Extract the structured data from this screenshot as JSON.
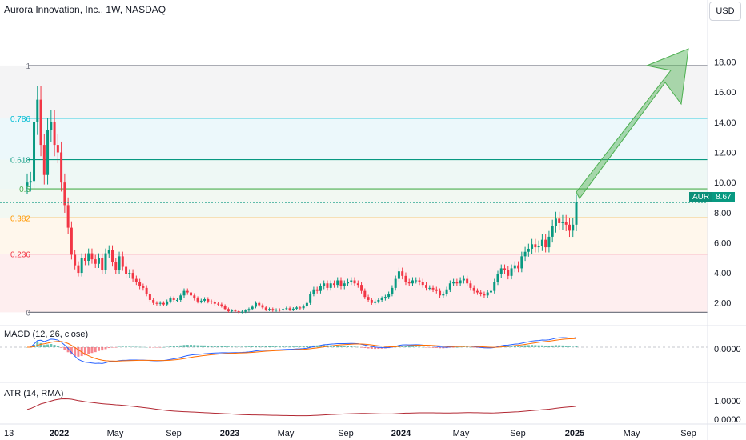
{
  "header": {
    "title": "Aurora Innovation, Inc., 1W, NASDAQ",
    "currency": "USD"
  },
  "colors": {
    "up": "#089981",
    "down": "#f23645",
    "fib_1": "#787b86",
    "fib_0786": "#00bcd4",
    "fib_0618": "#089981",
    "fib_05": "#4caf50",
    "fib_0382": "#ff9800",
    "fib_0236": "#f23645",
    "macd_line": "#2962ff",
    "signal_line": "#ff6d00",
    "atr_line": "#b22833",
    "arrow": "#4caf50"
  },
  "price_label": {
    "symbol": "AUR",
    "value": "8.67"
  },
  "macd_label": "MACD (12, 26, close)",
  "atr_label": "ATR (14, RMA)",
  "chart_data": [
    {
      "type": "candlestick",
      "pane": "price",
      "y_axis_ticks": [
        2,
        4,
        6,
        8,
        10,
        12,
        14,
        16,
        18
      ],
      "y_axis_tick_labels": [
        "2.00",
        "4.00",
        "6.00",
        "8.00",
        "10.00",
        "12.00",
        "14.00",
        "16.00",
        "18.00"
      ],
      "ylim": [
        0.55,
        19.2
      ],
      "x_axis_labels": [
        "13",
        "2022",
        "May",
        "Sep",
        "2023",
        "May",
        "Sep",
        "2024",
        "May",
        "Sep",
        "2025",
        "May",
        "Sep"
      ],
      "last_price": 8.67,
      "fibonacci": [
        {
          "level": "1",
          "price": 17.77
        },
        {
          "level": "0.786",
          "price": 14.27
        },
        {
          "level": "0.618",
          "price": 11.52
        },
        {
          "level": "0.5",
          "price": 9.58
        },
        {
          "level": "0.382",
          "price": 7.65
        },
        {
          "level": "0.236",
          "price": 5.25
        },
        {
          "level": "0",
          "price": 1.38
        }
      ],
      "closes": [
        10.0,
        10.1,
        14.0,
        15.5,
        12.5,
        10.5,
        13.5,
        14.0,
        12.5,
        12.0,
        10.0,
        8.5,
        7.0,
        5.2,
        4.5,
        4.0,
        5.0,
        4.8,
        5.3,
        4.9,
        4.6,
        5.0,
        4.2,
        5.3,
        5.5,
        4.7,
        4.2,
        5.1,
        4.4,
        3.9,
        4.0,
        3.6,
        3.4,
        3.1,
        3.0,
        2.6,
        2.2,
        2.0,
        1.95,
        2.0,
        1.9,
        2.1,
        2.3,
        2.2,
        2.2,
        2.5,
        2.8,
        2.7,
        2.5,
        2.3,
        2.1,
        2.15,
        2.25,
        2.1,
        2.05,
        1.95,
        1.9,
        1.8,
        1.6,
        1.45,
        1.5,
        1.45,
        1.4,
        1.42,
        1.5,
        1.6,
        1.75,
        2.0,
        1.85,
        1.7,
        1.55,
        1.6,
        1.5,
        1.55,
        1.52,
        1.6,
        1.65,
        1.55,
        1.62,
        1.7,
        1.65,
        1.8,
        2.0,
        2.6,
        2.9,
        2.8,
        3.1,
        3.3,
        3.0,
        3.3,
        3.2,
        3.5,
        3.1,
        3.3,
        3.4,
        3.5,
        3.3,
        3.2,
        2.8,
        2.4,
        2.2,
        2.0,
        2.1,
        2.2,
        2.3,
        2.4,
        2.6,
        3.0,
        3.6,
        4.1,
        3.8,
        3.4,
        3.3,
        3.5,
        3.5,
        3.4,
        3.2,
        3.0,
        3.0,
        2.9,
        2.8,
        2.5,
        2.6,
        2.9,
        3.3,
        3.4,
        3.3,
        3.5,
        3.6,
        3.3,
        3.0,
        2.8,
        2.7,
        2.6,
        2.5,
        2.7,
        2.8,
        3.4,
        3.9,
        4.3,
        4.2,
        3.8,
        4.3,
        4.5,
        4.3,
        5.1,
        5.4,
        5.6,
        5.9,
        5.7,
        5.8,
        6.2,
        5.7,
        6.4,
        7.1,
        7.6,
        7.3,
        7.4,
        7.2,
        6.8,
        7.2,
        8.67
      ]
    },
    {
      "type": "histogram+line",
      "pane": "macd",
      "title": "MACD (12, 26, close)",
      "y_axis_tick_labels": [
        "0.0000"
      ]
    },
    {
      "type": "line",
      "pane": "atr",
      "title": "ATR (14, RMA)",
      "y_axis_tick_labels": [
        "1.0000",
        "0.0000"
      ]
    }
  ]
}
